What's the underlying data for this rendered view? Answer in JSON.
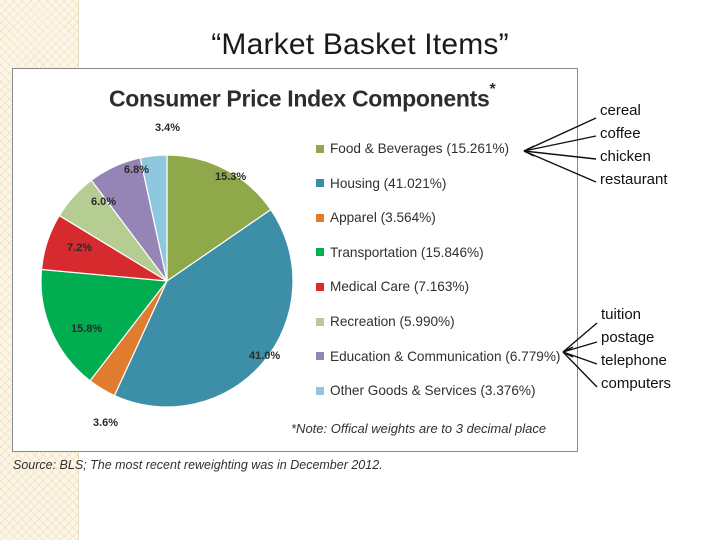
{
  "slide": {
    "title": "“Market Basket Items”"
  },
  "chart_data": {
    "type": "pie",
    "title": "Consumer Price Index Components",
    "title_marker": "*",
    "categories": [
      "Food & Beverages",
      "Housing",
      "Apparel",
      "Transportation",
      "Medical Care",
      "Recreation",
      "Education & Communication",
      "Other Goods & Services"
    ],
    "values": [
      15.261,
      41.021,
      3.564,
      15.846,
      7.163,
      5.99,
      6.779,
      3.376
    ],
    "slice_labels": [
      "15.3%",
      "41.0%",
      "3.6%",
      "15.8%",
      "7.2%",
      "6.0%",
      "6.8%",
      "3.4%"
    ],
    "legend": [
      "Food & Beverages (15.261%)",
      "Housing (41.021%)",
      "Apparel (3.564%)",
      "Transportation (15.846%)",
      "Medical Care (7.163%)",
      "Recreation (5.990%)",
      "Education & Communication (6.779%)",
      "Other Goods & Services (3.376%)"
    ],
    "colors": [
      "#8ea84a",
      "#3d8fa8",
      "#e07c2e",
      "#00ad50",
      "#d62a2f",
      "#b5cc93",
      "#9584b6",
      "#8ec8de"
    ],
    "legend_placement": "right",
    "note": "*Note: Offical weights are to 3 decimal place",
    "source": "Source: BLS; The most recent reweighting was in December 2012."
  },
  "annotations": {
    "top_items": [
      "cereal",
      "coffee",
      "chicken",
      "restaurant"
    ],
    "bottom_items": [
      "tuition",
      "postage",
      "telephone",
      "computers"
    ]
  }
}
